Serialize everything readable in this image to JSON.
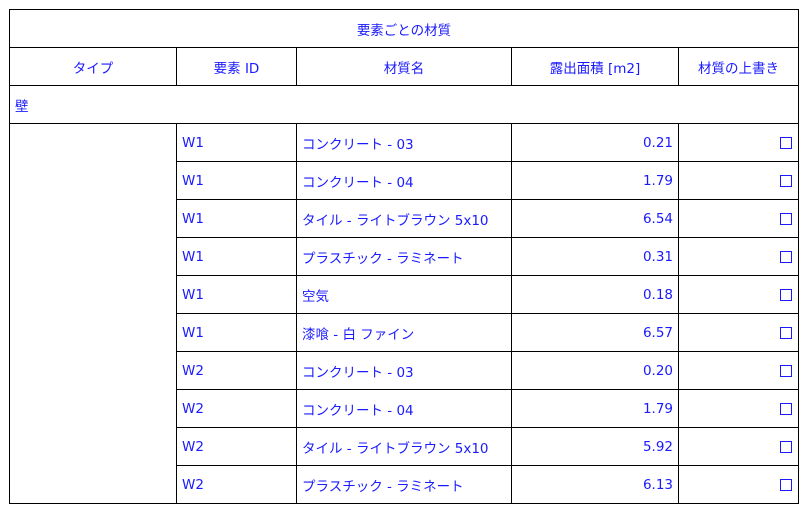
{
  "title": "要素ごとの材質",
  "headers": [
    "タイプ",
    "要素 ID",
    "材質名",
    "露出面積 [m2]",
    "材質の上書き"
  ],
  "group": "壁",
  "rows": [
    {
      "id": "W1",
      "material": "コンクリート - 03",
      "area": "0.21",
      "override": false
    },
    {
      "id": "W1",
      "material": "コンクリート - 04",
      "area": "1.79",
      "override": false
    },
    {
      "id": "W1",
      "material": "タイル - ライトブラウン 5x10",
      "area": "6.54",
      "override": false
    },
    {
      "id": "W1",
      "material": "プラスチック - ラミネート",
      "area": "0.31",
      "override": false
    },
    {
      "id": "W1",
      "material": "空気",
      "area": "0.18",
      "override": false
    },
    {
      "id": "W1",
      "material": "漆喰 - 白 ファイン",
      "area": "6.57",
      "override": false
    },
    {
      "id": "W2",
      "material": "コンクリート - 03",
      "area": "0.20",
      "override": false
    },
    {
      "id": "W2",
      "material": "コンクリート - 04",
      "area": "1.79",
      "override": false
    },
    {
      "id": "W2",
      "material": "タイル - ライトブラウン 5x10",
      "area": "5.92",
      "override": false
    },
    {
      "id": "W2",
      "material": "プラスチック - ラミネート",
      "area": "6.13",
      "override": false
    }
  ]
}
